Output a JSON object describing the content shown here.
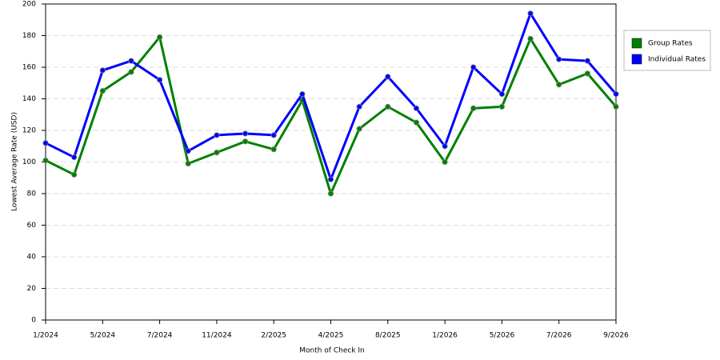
{
  "chart_data": {
    "type": "line",
    "x_label": "Month of Check In",
    "y_label": "Lowest Average Rate (USD)",
    "categories": [
      "1/2024",
      null,
      "5/2024",
      null,
      "7/2024",
      null,
      "11/2024",
      null,
      "2/2025",
      null,
      "4/2025",
      null,
      "8/2025",
      null,
      "1/2026",
      null,
      "5/2026",
      null,
      "7/2026",
      null,
      "9/2026"
    ],
    "series": [
      {
        "name": "Group Rates",
        "color": "#008000",
        "values": [
          101,
          92,
          145,
          157,
          179,
          99,
          106,
          113,
          108,
          139,
          80,
          121,
          135,
          125,
          100,
          134,
          135,
          178,
          149,
          156,
          135
        ]
      },
      {
        "name": "Individual Rates",
        "color": "#0000ff",
        "values": [
          112,
          103,
          158,
          164,
          152,
          107,
          117,
          118,
          117,
          143,
          89,
          135,
          154,
          134,
          110,
          160,
          143,
          194,
          165,
          164,
          143
        ]
      }
    ],
    "ylim": [
      0,
      200
    ],
    "yticks": [
      0,
      20,
      40,
      60,
      80,
      100,
      120,
      140,
      160,
      180,
      200
    ],
    "grid": true,
    "legend": "right"
  }
}
